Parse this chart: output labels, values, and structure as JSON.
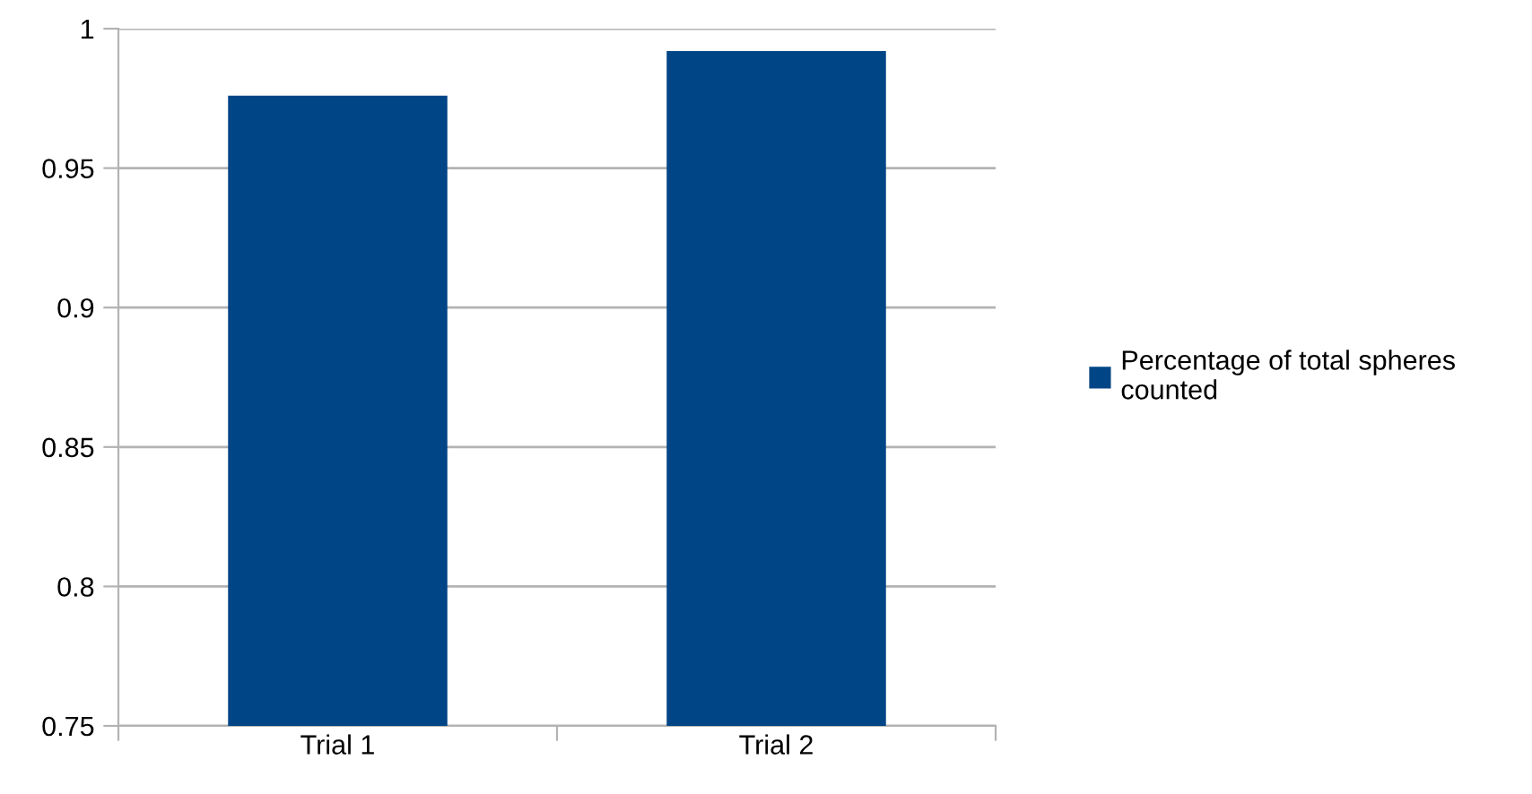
{
  "chart_data": {
    "type": "bar",
    "categories": [
      "Trial 1",
      "Trial 2"
    ],
    "series": [
      {
        "name": "Percentage of total spheres counted",
        "color": "#004586",
        "values": [
          0.976,
          0.992
        ]
      }
    ],
    "ylim": [
      0.75,
      1
    ],
    "yticks": [
      {
        "value": 0.75,
        "label": "0.75"
      },
      {
        "value": 0.8,
        "label": "0.8"
      },
      {
        "value": 0.85,
        "label": "0.85"
      },
      {
        "value": 0.9,
        "label": "0.9"
      },
      {
        "value": 0.95,
        "label": "0.95"
      },
      {
        "value": 1,
        "label": "1"
      }
    ],
    "grid": "y",
    "legend": "right"
  }
}
